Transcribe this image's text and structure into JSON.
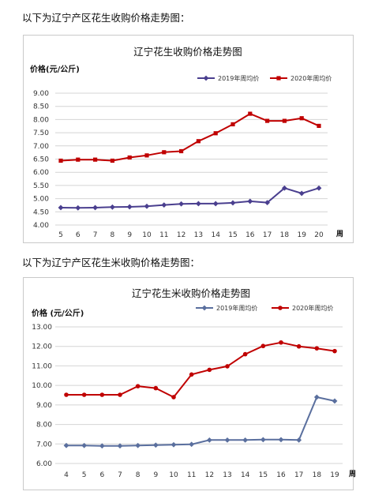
{
  "captions": {
    "first": "以下为辽宁产区花生收购价格走势图：",
    "second": "以下为辽宁产区花生米收购价格走势图："
  },
  "colors": {
    "series_2019_a": "#4a3f8f",
    "series_2019_b": "#5a6f9e",
    "series_2020": "#c00000"
  },
  "chart_data": [
    {
      "type": "line",
      "title": "辽宁花生收购价格走势图",
      "ylabel": "价格(元/公斤)",
      "xlabel": "周",
      "ylim": [
        4.0,
        9.0
      ],
      "yticks": [
        "4.00",
        "4.50",
        "5.00",
        "5.50",
        "6.00",
        "6.50",
        "7.00",
        "7.50",
        "8.00",
        "8.50",
        "9.00"
      ],
      "categories": [
        "5",
        "6",
        "7",
        "8",
        "9",
        "10",
        "11",
        "12",
        "13",
        "14",
        "15",
        "16",
        "17",
        "18",
        "19",
        "20"
      ],
      "grid": true,
      "legend_position": "top-right",
      "series": [
        {
          "name": "2019年周均价",
          "color": "#4a3f8f",
          "marker": "diamond",
          "values": [
            4.66,
            4.65,
            4.66,
            4.68,
            4.69,
            4.71,
            4.76,
            4.8,
            4.81,
            4.81,
            4.84,
            4.9,
            4.85,
            5.4,
            5.2,
            5.4
          ]
        },
        {
          "name": "2020年周均价",
          "color": "#c00000",
          "marker": "square",
          "values": [
            6.44,
            6.48,
            6.48,
            6.44,
            6.56,
            6.64,
            6.76,
            6.8,
            7.18,
            7.48,
            7.82,
            8.22,
            7.95,
            7.95,
            8.05,
            7.76
          ]
        }
      ]
    },
    {
      "type": "line",
      "title": "辽宁花生米收购价格走势图",
      "ylabel": "价格 (元/公斤)",
      "xlabel": "周",
      "ylim": [
        6.0,
        13.0
      ],
      "yticks": [
        "6.00",
        "7.00",
        "8.00",
        "9.00",
        "10.00",
        "11.00",
        "12.00",
        "13.00"
      ],
      "categories": [
        "4",
        "5",
        "6",
        "7",
        "8",
        "9",
        "10",
        "11",
        "12",
        "13",
        "14",
        "15",
        "16",
        "17",
        "18",
        "19"
      ],
      "grid": true,
      "legend_position": "top-right",
      "series": [
        {
          "name": "2019年周均价",
          "color": "#5a6f9e",
          "marker": "diamond",
          "values": [
            6.92,
            6.92,
            6.9,
            6.9,
            6.92,
            6.94,
            6.96,
            6.98,
            7.2,
            7.2,
            7.2,
            7.22,
            7.22,
            7.2,
            9.4,
            9.2
          ]
        },
        {
          "name": "2020年周均价",
          "color": "#c00000",
          "marker": "circle",
          "values": [
            9.52,
            9.52,
            9.52,
            9.52,
            9.96,
            9.86,
            9.4,
            10.56,
            10.8,
            10.98,
            11.6,
            12.02,
            12.2,
            12.0,
            11.9,
            11.76
          ]
        }
      ]
    }
  ]
}
